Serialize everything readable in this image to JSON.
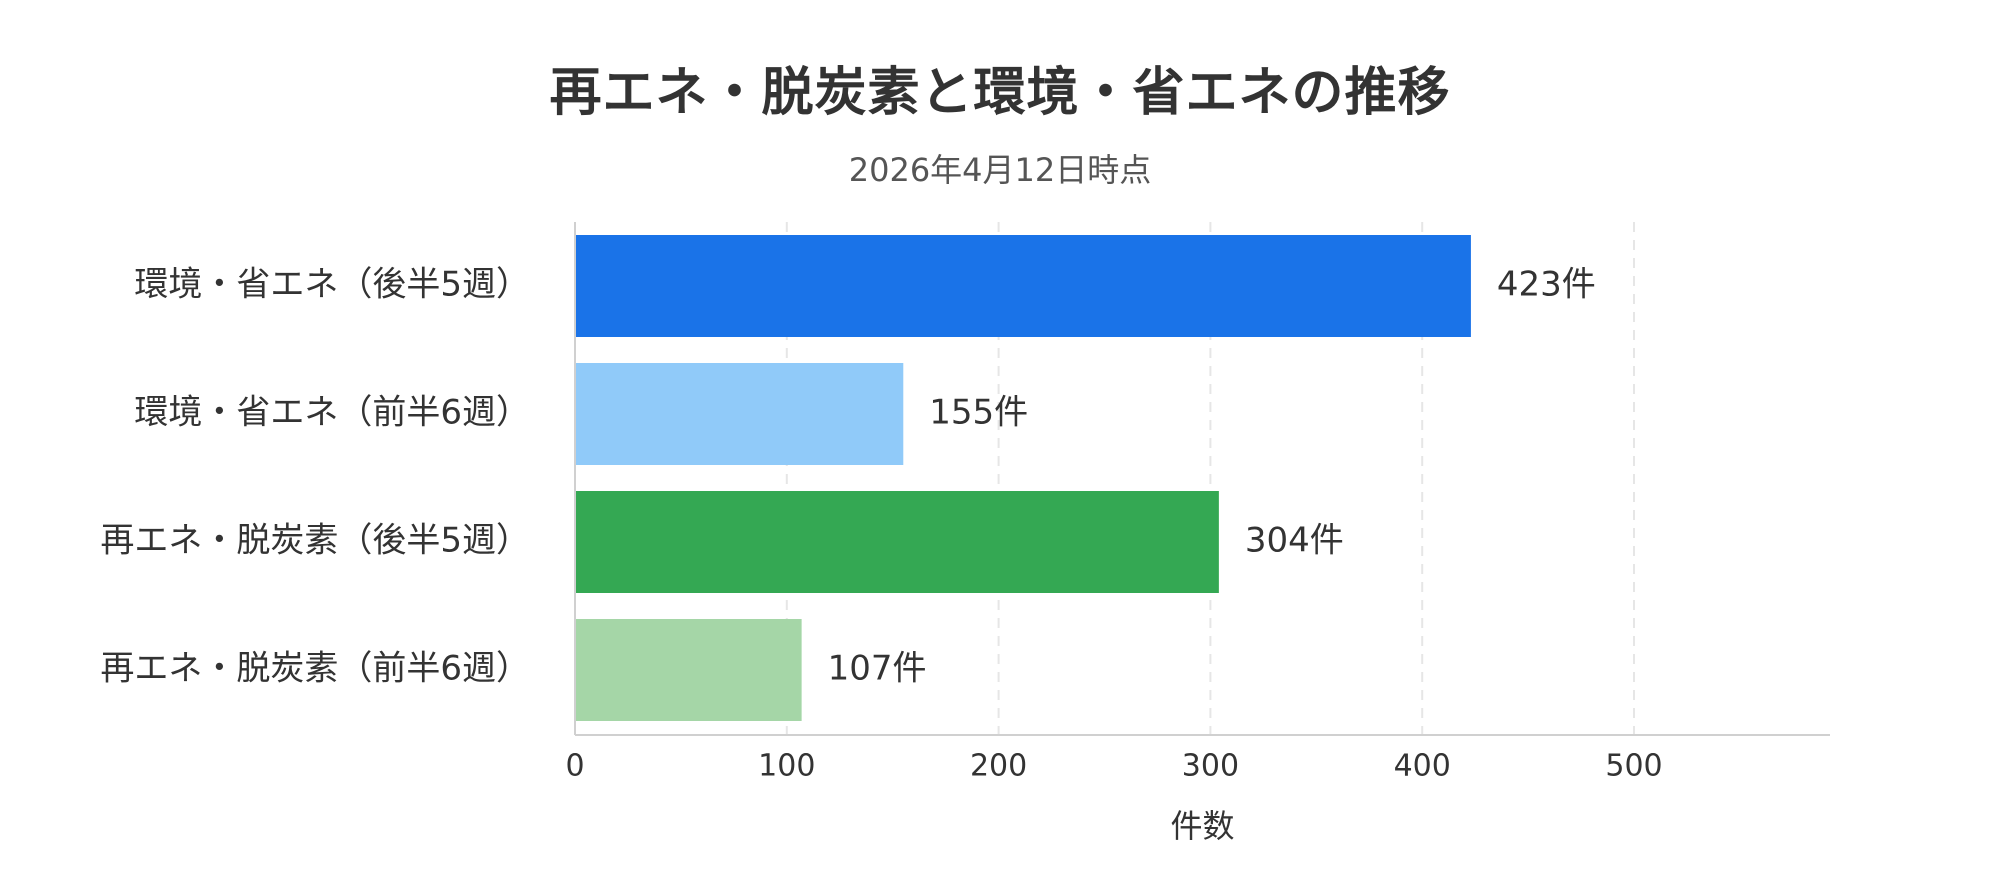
{
  "chart_data": {
    "type": "bar",
    "orientation": "horizontal",
    "title": "再エネ・脱炭素と環境・省エネの推移",
    "subtitle": "2026年4月12日時点",
    "categories": [
      "環境・省エネ（後半5週）",
      "環境・省エネ（前半6週）",
      "再エネ・脱炭素（後半5週）",
      "再エネ・脱炭素（前半6週）"
    ],
    "values": [
      423,
      155,
      304,
      107
    ],
    "value_labels": [
      "423件",
      "155件",
      "304件",
      "107件"
    ],
    "colors": [
      "#1a73e8",
      "#90caf9",
      "#34a853",
      "#a5d6a7"
    ],
    "xlabel": "件数",
    "ylabel": "",
    "xlim": [
      0,
      590
    ],
    "xticks": [
      0,
      100,
      200,
      300,
      400,
      500
    ],
    "xtick_labels": [
      "0",
      "100",
      "200",
      "300",
      "400",
      "500"
    ],
    "grid": true,
    "legend": "none"
  }
}
